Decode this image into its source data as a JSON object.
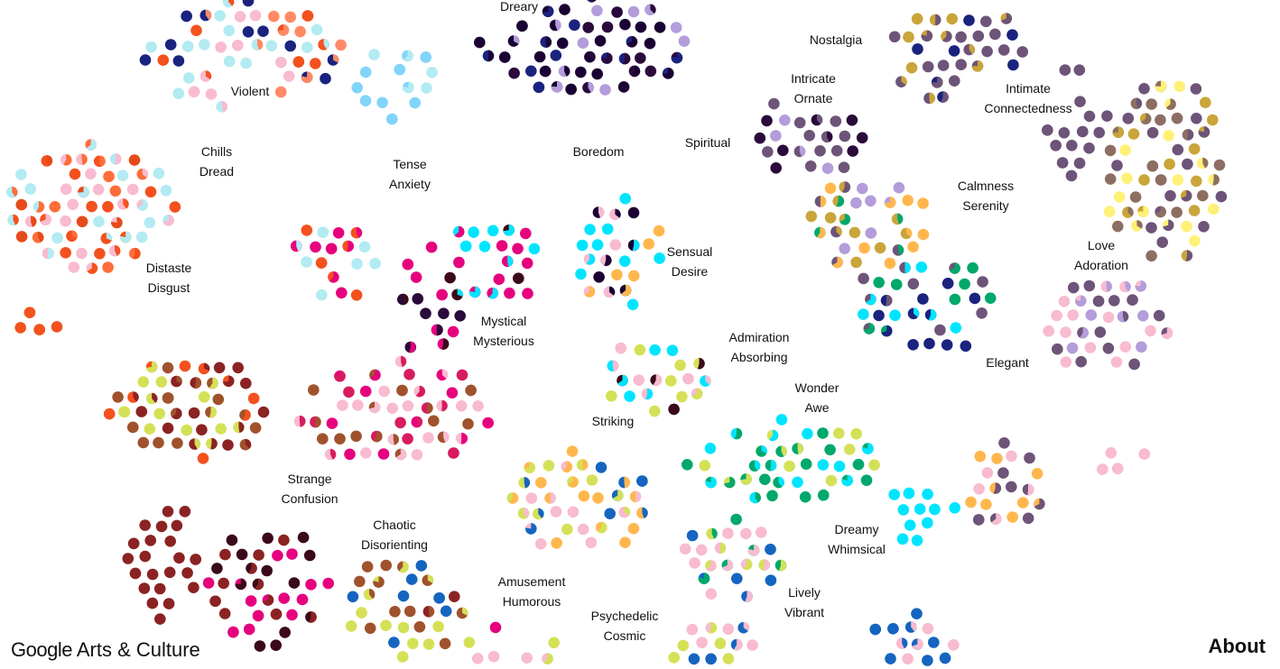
{
  "labels": [
    [
      "Dreary"
    ],
    [
      "Nostalgia"
    ],
    [
      "Violent"
    ],
    [
      "Intricate",
      "Ornate"
    ],
    [
      "Intimate",
      "Connectedness"
    ],
    [
      "Chills",
      "Dread"
    ],
    [
      "Tense",
      "Anxiety"
    ],
    [
      "Boredom"
    ],
    [
      "Spiritual"
    ],
    [
      "Calmness",
      "Serenity"
    ],
    [
      "Love",
      "Adoration"
    ],
    [
      "Sensual",
      "Desire"
    ],
    [
      "Distaste",
      "Disgust"
    ],
    [
      "Mystical",
      "Mysterious"
    ],
    [
      "Admiration",
      "Absorbing"
    ],
    [
      "Elegant"
    ],
    [
      "Wonder",
      "Awe"
    ],
    [
      "Striking"
    ],
    [
      "Strange",
      "Confusion"
    ],
    [
      "Chaotic",
      "Disorienting"
    ],
    [
      "Dreamy",
      "Whimsical"
    ],
    [
      "Amusement",
      "Humorous"
    ],
    [
      "Lively",
      "Vibrant"
    ],
    [
      "Psychedelic",
      "Cosmic"
    ]
  ],
  "footer": {
    "brand": "Google",
    "product": "Arts & Culture",
    "about": "About"
  }
}
